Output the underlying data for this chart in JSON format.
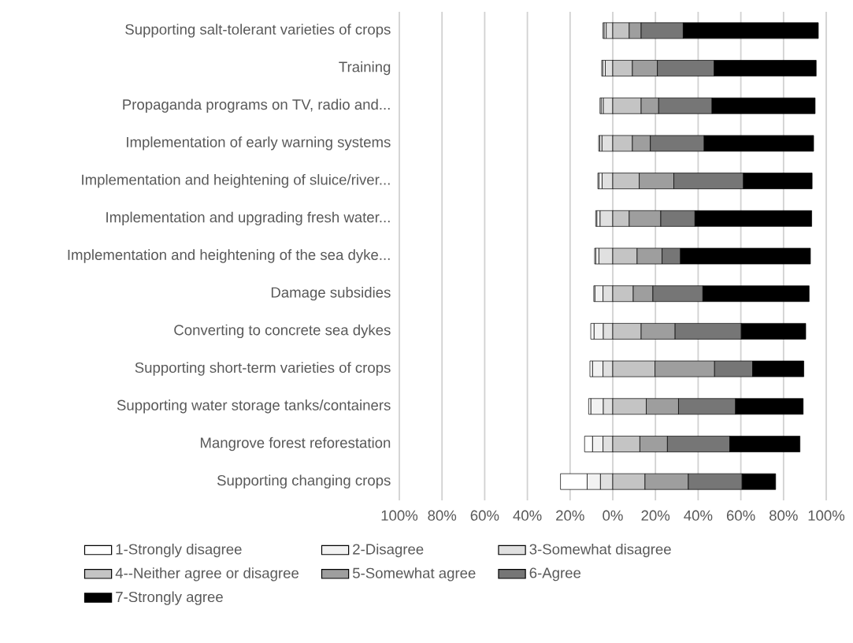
{
  "chart_data": {
    "type": "bar",
    "orientation": "horizontal",
    "stacked": true,
    "categories": [
      "Supporting salt-tolerant varieties of crops",
      "Training",
      "Propaganda programs on TV, radio and...",
      "Implementation of early warning systems",
      "Implementation and heightening of sluice/river...",
      "Implementation and upgrading fresh water...",
      "Implementation and heightening of the sea dyke...",
      "Damage subsidies",
      "Converting to concrete sea dykes",
      "Supporting short-term varieties of crops",
      "Supporting water storage tanks/containers",
      "Mangrove forest reforestation",
      "Supporting changing crops"
    ],
    "series": [
      {
        "name": "3-Somewhat disagree",
        "color": "#e0e0e0",
        "values": [
          -3.1,
          -3.5,
          -4.5,
          -5.1,
          -5.0,
          -6.0,
          -6.5,
          -4.6,
          -4.5,
          -4.6,
          -4.5,
          -4.6,
          -5.8
        ]
      },
      {
        "name": "2-Disagree",
        "color": "#f2f2f2",
        "values": [
          -1.0,
          -1.2,
          -1.0,
          -1.0,
          -1.5,
          -1.5,
          -1.5,
          -3.8,
          -4.3,
          -4.9,
          -5.8,
          -4.9,
          -6.2
        ]
      },
      {
        "name": "1-Strongly disagree",
        "color": "#ffffff",
        "values": [
          -0.5,
          -0.5,
          -0.5,
          -0.5,
          -0.5,
          -0.5,
          -0.5,
          -0.5,
          -1.5,
          -1.2,
          -1.0,
          -3.7,
          -12.5
        ]
      },
      {
        "name": "4--Neither agree or disagree",
        "color": "#c4c4c4",
        "values": [
          7.7,
          9.2,
          13.3,
          9.2,
          12.4,
          7.7,
          11.4,
          9.6,
          13.3,
          19.8,
          15.7,
          12.7,
          15.1
        ]
      },
      {
        "name": "5-Somewhat agree",
        "color": "#9e9e9e",
        "values": [
          5.6,
          11.7,
          8.2,
          8.4,
          16.2,
          14.8,
          11.7,
          9.2,
          15.9,
          27.9,
          15.1,
          12.9,
          20.3
        ]
      },
      {
        "name": "6-Agree",
        "color": "#767676",
        "values": [
          19.7,
          26.6,
          25.0,
          25.2,
          32.6,
          16.0,
          8.6,
          23.4,
          31.0,
          17.8,
          26.7,
          29.2,
          25.2
        ]
      },
      {
        "name": "7-Strongly agree",
        "color": "#000000",
        "values": [
          63.3,
          47.8,
          48.3,
          51.3,
          32.2,
          54.7,
          60.9,
          49.8,
          30.2,
          24.0,
          31.7,
          32.9,
          15.7
        ]
      }
    ],
    "xlim": [
      -100,
      100
    ],
    "xticks": [
      {
        "value": -100,
        "label": "100%"
      },
      {
        "value": -80,
        "label": "80%"
      },
      {
        "value": -60,
        "label": "60%"
      },
      {
        "value": -40,
        "label": "40%"
      },
      {
        "value": -20,
        "label": "20%"
      },
      {
        "value": 0,
        "label": "0%"
      },
      {
        "value": 20,
        "label": "20%"
      },
      {
        "value": 40,
        "label": "40%"
      },
      {
        "value": 60,
        "label": "60%"
      },
      {
        "value": 80,
        "label": "80%"
      },
      {
        "value": 100,
        "label": "100%"
      }
    ],
    "grid": "x",
    "legend": "bottom"
  }
}
